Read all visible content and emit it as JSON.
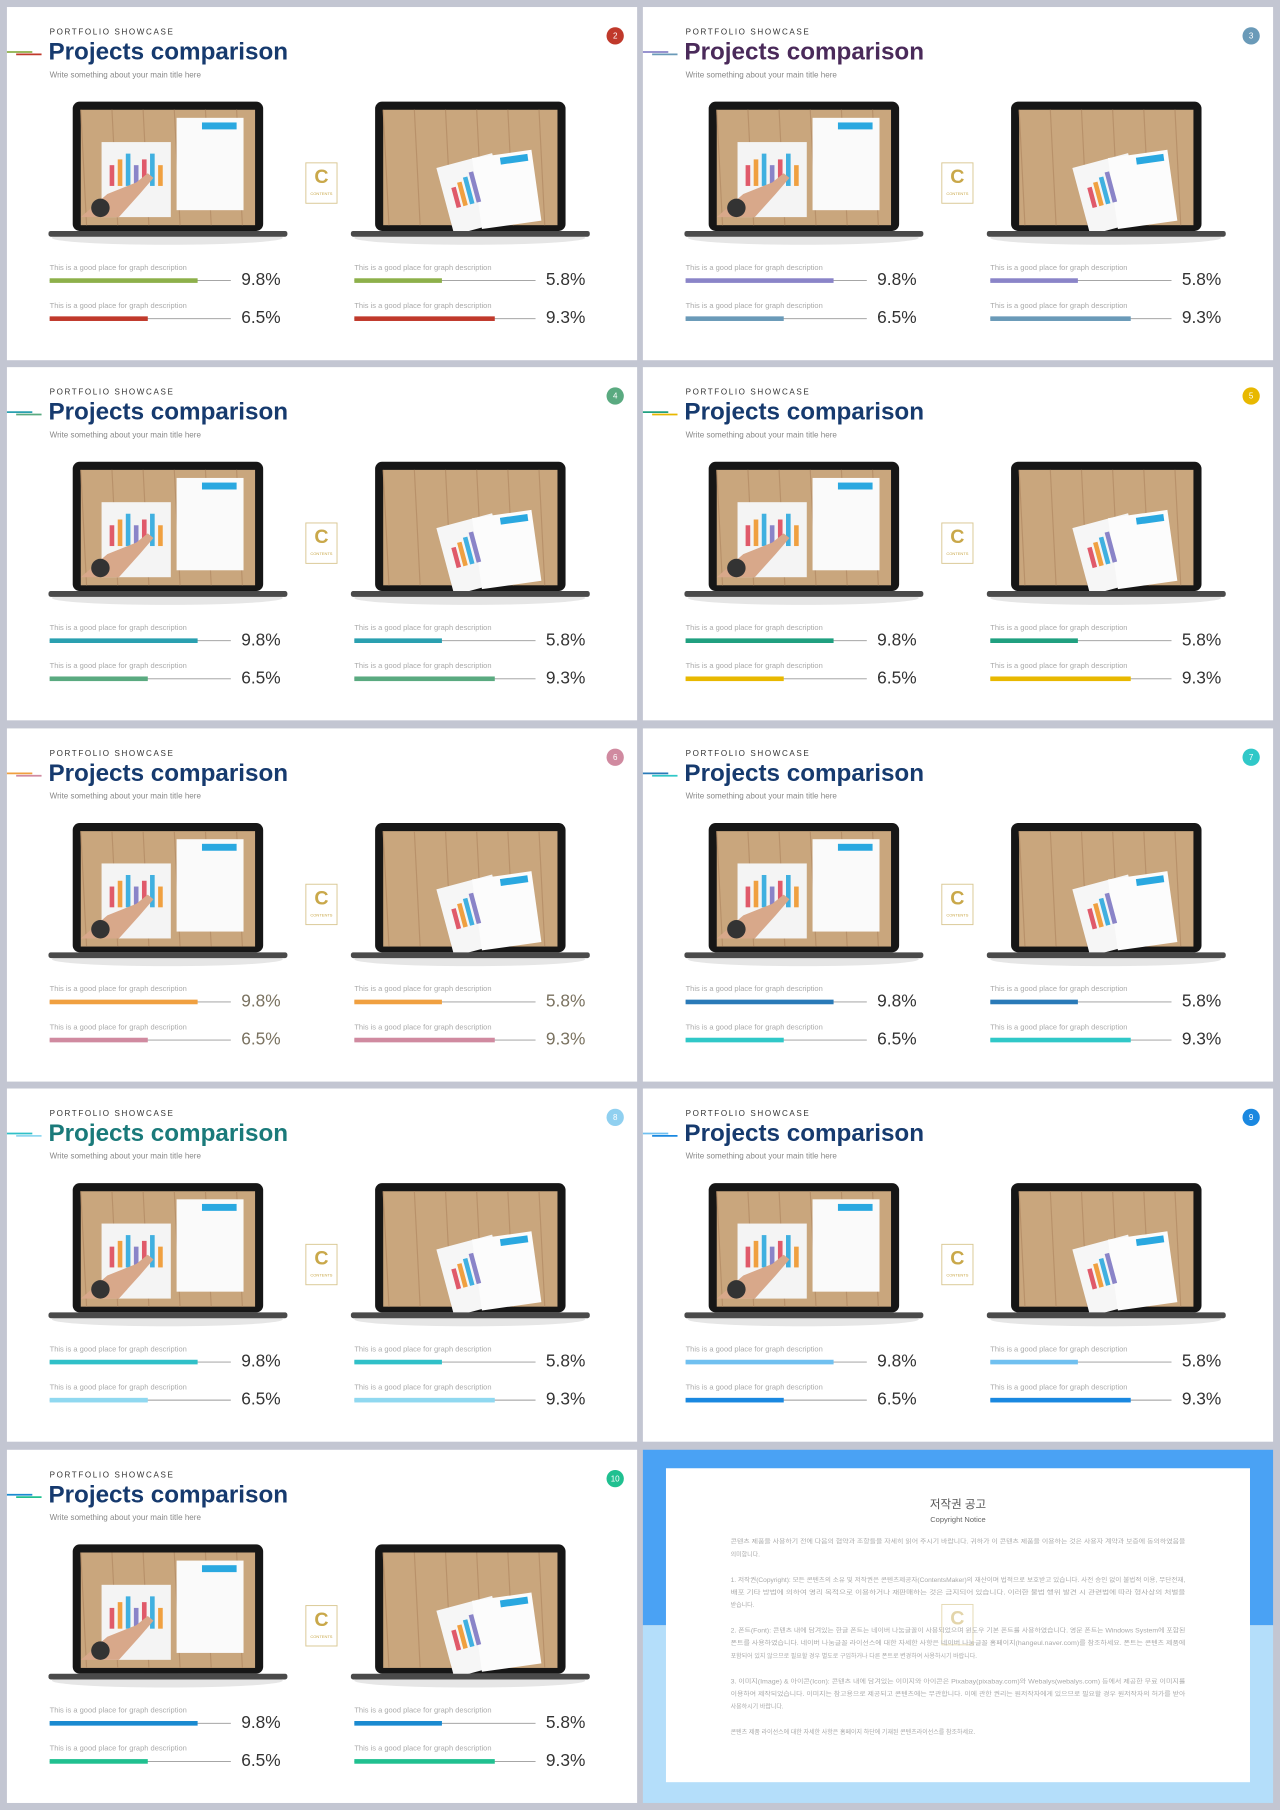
{
  "logo": {
    "letter": "C",
    "word": "CONTENTS"
  },
  "slides": [
    {
      "number": "2",
      "label": "PORTFOLIO SHOWCASE",
      "title": "Projects comparison",
      "subtitle": "Write something about your main title here",
      "colors": {
        "accent1": "#8db04a",
        "accent2": "#c0392b",
        "title": "#163a6e",
        "badge": "#c0392b",
        "percent": "#333333"
      },
      "items": [
        {
          "description": "This is a good place for graph description",
          "value": {
            "value": 9.8,
            "label": "9.8%"
          }
        },
        {
          "description": "This is a good place for graph description",
          "value": {
            "value": 6.5,
            "label": "6.5%"
          }
        },
        {
          "description": "This is a good place for graph description",
          "value": {
            "value": 5.8,
            "label": "5.8%"
          }
        },
        {
          "description": "This is a good place for graph description",
          "value": {
            "value": 9.3,
            "label": "9.3%"
          }
        }
      ]
    },
    {
      "number": "3",
      "label": "PORTFOLIO SHOWCASE",
      "title": "Projects comparison",
      "subtitle": "Write something about your main title here",
      "colors": {
        "accent1": "#8a84c8",
        "accent2": "#6a9ab8",
        "title": "#4a2a5a",
        "badge": "#6a9ab8",
        "percent": "#333333"
      },
      "items": [
        {
          "description": "This is a good place for graph description",
          "value": {
            "value": 9.8,
            "label": "9.8%"
          }
        },
        {
          "description": "This is a good place for graph description",
          "value": {
            "value": 6.5,
            "label": "6.5%"
          }
        },
        {
          "description": "This is a good place for graph description",
          "value": {
            "value": 5.8,
            "label": "5.8%"
          }
        },
        {
          "description": "This is a good place for graph description",
          "value": {
            "value": 9.3,
            "label": "9.3%"
          }
        }
      ]
    },
    {
      "number": "4",
      "label": "PORTFOLIO SHOWCASE",
      "title": "Projects comparison",
      "subtitle": "Write something about your main title here",
      "colors": {
        "accent1": "#2aa0b0",
        "accent2": "#5aaa80",
        "title": "#163a6e",
        "badge": "#5aaa80",
        "percent": "#333333"
      },
      "items": [
        {
          "description": "This is a good place for graph description",
          "value": {
            "value": 9.8,
            "label": "9.8%"
          }
        },
        {
          "description": "This is a good place for graph description",
          "value": {
            "value": 6.5,
            "label": "6.5%"
          }
        },
        {
          "description": "This is a good place for graph description",
          "value": {
            "value": 5.8,
            "label": "5.8%"
          }
        },
        {
          "description": "This is a good place for graph description",
          "value": {
            "value": 9.3,
            "label": "9.3%"
          }
        }
      ]
    },
    {
      "number": "5",
      "label": "PORTFOLIO SHOWCASE",
      "title": "Projects comparison",
      "subtitle": "Write something about your main title here",
      "colors": {
        "accent1": "#20a080",
        "accent2": "#e8b800",
        "title": "#163a6e",
        "badge": "#e8b800",
        "percent": "#333333"
      },
      "items": [
        {
          "description": "This is a good place for graph description",
          "value": {
            "value": 9.8,
            "label": "9.8%"
          }
        },
        {
          "description": "This is a good place for graph description",
          "value": {
            "value": 6.5,
            "label": "6.5%"
          }
        },
        {
          "description": "This is a good place for graph description",
          "value": {
            "value": 5.8,
            "label": "5.8%"
          }
        },
        {
          "description": "This is a good place for graph description",
          "value": {
            "value": 9.3,
            "label": "9.3%"
          }
        }
      ]
    },
    {
      "number": "6",
      "label": "PORTFOLIO SHOWCASE",
      "title": "Projects comparison",
      "subtitle": "Write something about your main title here",
      "colors": {
        "accent1": "#f0a040",
        "accent2": "#d08aa0",
        "title": "#163a6e",
        "badge": "#d08aa0",
        "percent": "#7a7260"
      },
      "items": [
        {
          "description": "This is a good place for graph description",
          "value": {
            "value": 9.8,
            "label": "9.8%"
          }
        },
        {
          "description": "This is a good place for graph description",
          "value": {
            "value": 6.5,
            "label": "6.5%"
          }
        },
        {
          "description": "This is a good place for graph description",
          "value": {
            "value": 5.8,
            "label": "5.8%"
          }
        },
        {
          "description": "This is a good place for graph description",
          "value": {
            "value": 9.3,
            "label": "9.3%"
          }
        }
      ]
    },
    {
      "number": "7",
      "label": "PORTFOLIO SHOWCASE",
      "title": "Projects comparison",
      "subtitle": "Write something about your main title here",
      "colors": {
        "accent1": "#2a7ab8",
        "accent2": "#30c8c8",
        "title": "#163a6e",
        "badge": "#30c8c8",
        "percent": "#333333"
      },
      "items": [
        {
          "description": "This is a good place for graph description",
          "value": {
            "value": 9.8,
            "label": "9.8%"
          }
        },
        {
          "description": "This is a good place for graph description",
          "value": {
            "value": 6.5,
            "label": "6.5%"
          }
        },
        {
          "description": "This is a good place for graph description",
          "value": {
            "value": 5.8,
            "label": "5.8%"
          }
        },
        {
          "description": "This is a good place for graph description",
          "value": {
            "value": 9.3,
            "label": "9.3%"
          }
        }
      ]
    },
    {
      "number": "8",
      "label": "PORTFOLIO SHOWCASE",
      "title": "Projects comparison",
      "subtitle": "Write something about your main title here",
      "colors": {
        "accent1": "#30c0c8",
        "accent2": "#90d8f0",
        "title": "#1a7a7a",
        "badge": "#90d0f0",
        "percent": "#333333"
      },
      "items": [
        {
          "description": "This is a good place for graph description",
          "value": {
            "value": 9.8,
            "label": "9.8%"
          }
        },
        {
          "description": "This is a good place for graph description",
          "value": {
            "value": 6.5,
            "label": "6.5%"
          }
        },
        {
          "description": "This is a good place for graph description",
          "value": {
            "value": 5.8,
            "label": "5.8%"
          }
        },
        {
          "description": "This is a good place for graph description",
          "value": {
            "value": 9.3,
            "label": "9.3%"
          }
        }
      ]
    },
    {
      "number": "9",
      "label": "PORTFOLIO SHOWCASE",
      "title": "Projects comparison",
      "subtitle": "Write something about your main title here",
      "colors": {
        "accent1": "#70c0f0",
        "accent2": "#1a88e0",
        "title": "#163a6e",
        "badge": "#1a88e0",
        "percent": "#333333"
      },
      "items": [
        {
          "description": "This is a good place for graph description",
          "value": {
            "value": 9.8,
            "label": "9.8%"
          }
        },
        {
          "description": "This is a good place for graph description",
          "value": {
            "value": 6.5,
            "label": "6.5%"
          }
        },
        {
          "description": "This is a good place for graph description",
          "value": {
            "value": 5.8,
            "label": "5.8%"
          }
        },
        {
          "description": "This is a good place for graph description",
          "value": {
            "value": 9.3,
            "label": "9.3%"
          }
        }
      ]
    },
    {
      "number": "10",
      "label": "PORTFOLIO SHOWCASE",
      "title": "Projects comparison",
      "subtitle": "Write something about your main title here",
      "colors": {
        "accent1": "#1a8ad0",
        "accent2": "#20c090",
        "title": "#163a6e",
        "badge": "#20c090",
        "percent": "#333333"
      },
      "items": [
        {
          "description": "This is a good place for graph description",
          "value": {
            "value": 9.8,
            "label": "9.8%"
          }
        },
        {
          "description": "This is a good place for graph description",
          "value": {
            "value": 6.5,
            "label": "6.5%"
          }
        },
        {
          "description": "This is a good place for graph description",
          "value": {
            "value": 5.8,
            "label": "5.8%"
          }
        },
        {
          "description": "This is a good place for graph description",
          "value": {
            "value": 9.3,
            "label": "9.3%"
          }
        }
      ]
    }
  ],
  "copyright": {
    "title": "저작권 공고",
    "subtitle": "Copyright Notice",
    "paragraphs": [
      [
        "콘텐츠 제품을 사용하기 전에 다음의 협약과 조항들을 자세히 읽어 주시기 바랍니다. 귀하가 이 콘텐츠 제품을 이용하는 것은 사용자 계약과 보증에 동의하였음을",
        "의미합니다."
      ],
      [
        "1. 저작권(Copyright): 모든 콘텐츠의 소유 및 저작권은 콘텐츠제공자(ContentsMaker)의 재산이며 법적으로 보호받고 있습니다. 사전 승인 없이 불법적 이용, 무단전재,",
        "배포 기타 방법에 의하여 영리 목적으로 이용하거나 재판매하는 것은 금지되어 있습니다. 이러한 불법 행위 발견 시 관련법에 따라 형사상의 처벌을",
        "받습니다."
      ],
      [
        "2. 폰트(Font): 콘텐츠 내에 담겨있는 한글 폰트는 네이버 나눔글꼴이 사용되었으며 윈도우 기본 폰트를 사용하였습니다. 영문 폰트는 Windows System에 포함된",
        "폰트를 사용하였습니다. 네이버 나눔글꼴 라이선스에 대한 자세한 사항은 네이버 나눔글꼴 홈페이지(hangeul.naver.com)를 참조하세요. 폰트는 콘텐츠 제품에",
        "포함되어 있지 않으므로 필요할 경우 별도로 구입하거나 다른 폰트로 변경하여 사용하시기 바랍니다."
      ],
      [
        "3. 이미지(Image) & 아이콘(Icon): 콘텐츠 내에 담겨있는 이미지와 아이콘은 Pixabay(pixabay.com)와 Webalys(webalys.com) 등에서 제공한 무료 이미지를",
        "이용하여 제작되었습니다. 이미지는 참고용으로 제공되고 콘텐츠에는 무관합니다. 이에 관한 권리는 원저작자에게 있으므로 필요할 경우 원저작자의 허가를 받아",
        "사용하시기 바랍니다."
      ],
      [
        "콘텐츠 제품 라이선스에 대한 자세한 사항은 홈페이지 하단에 기재된 콘텐츠라이선스를 참조하세요."
      ]
    ]
  }
}
